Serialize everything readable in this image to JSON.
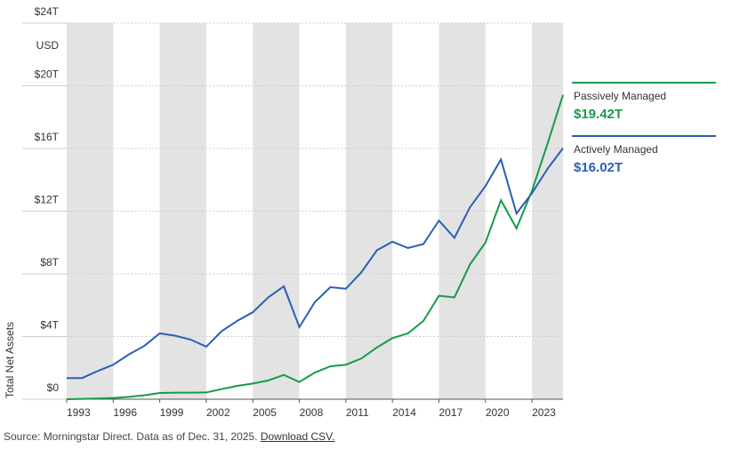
{
  "chart_data": {
    "type": "line",
    "y_unit": "USD",
    "y_label": "Total Net Assets",
    "x": [
      1993,
      1994,
      1995,
      1996,
      1997,
      1998,
      1999,
      2000,
      2001,
      2002,
      2003,
      2004,
      2005,
      2006,
      2007,
      2008,
      2009,
      2010,
      2011,
      2012,
      2013,
      2014,
      2015,
      2016,
      2017,
      2018,
      2019,
      2020,
      2021,
      2022,
      2023,
      2024,
      2025
    ],
    "xlim": [
      1993,
      2025
    ],
    "xticks": [
      1993,
      1996,
      1999,
      2002,
      2005,
      2008,
      2011,
      2014,
      2017,
      2020,
      2023
    ],
    "ylim": [
      0,
      24
    ],
    "yticks": [
      {
        "value": 0,
        "label": "$0"
      },
      {
        "value": 4,
        "label": "$4T"
      },
      {
        "value": 8,
        "label": "$8T"
      },
      {
        "value": 12,
        "label": "$12T"
      },
      {
        "value": 16,
        "label": "$16T"
      },
      {
        "value": 20,
        "label": "$20T"
      },
      {
        "value": 24,
        "label": "$24T"
      }
    ],
    "grid": true,
    "series": [
      {
        "name": "Passively Managed",
        "color": "#169b48",
        "values": [
          0,
          0.02,
          0.04,
          0.08,
          0.15,
          0.25,
          0.4,
          0.42,
          0.42,
          0.43,
          0.65,
          0.85,
          1.0,
          1.2,
          1.55,
          1.1,
          1.7,
          2.1,
          2.2,
          2.6,
          3.3,
          3.9,
          4.2,
          5.0,
          6.6,
          6.5,
          8.6,
          10.0,
          12.7,
          10.9,
          13.3,
          16.3,
          19.42
        ],
        "value_labels": [
          null,
          null,
          null,
          null,
          null,
          null,
          null,
          null,
          null,
          null,
          null,
          null,
          null,
          null,
          null,
          null,
          null,
          null,
          null,
          null,
          null,
          null,
          null,
          null,
          null,
          null,
          null,
          null,
          null,
          null,
          null,
          null,
          "$19.42T"
        ]
      },
      {
        "name": "Actively Managed",
        "color": "#2b5fb4",
        "values": [
          1.35,
          1.35,
          1.8,
          2.2,
          2.85,
          3.4,
          4.2,
          4.05,
          3.8,
          3.35,
          4.35,
          5.0,
          5.55,
          6.5,
          7.2,
          4.6,
          6.2,
          7.15,
          7.05,
          8.1,
          9.5,
          10.05,
          9.65,
          9.9,
          11.4,
          10.3,
          12.25,
          13.6,
          15.3,
          11.85,
          13.15,
          14.7,
          16.02
        ],
        "value_labels": [
          null,
          null,
          null,
          null,
          null,
          null,
          null,
          null,
          null,
          null,
          null,
          null,
          null,
          null,
          null,
          null,
          null,
          null,
          null,
          null,
          null,
          null,
          null,
          null,
          null,
          null,
          null,
          null,
          null,
          null,
          null,
          null,
          "$16.02T"
        ]
      }
    ]
  },
  "footer": {
    "source": "Source: Morningstar Direct. Data as of Dec. 31, 2025.",
    "link": "Download CSV."
  }
}
